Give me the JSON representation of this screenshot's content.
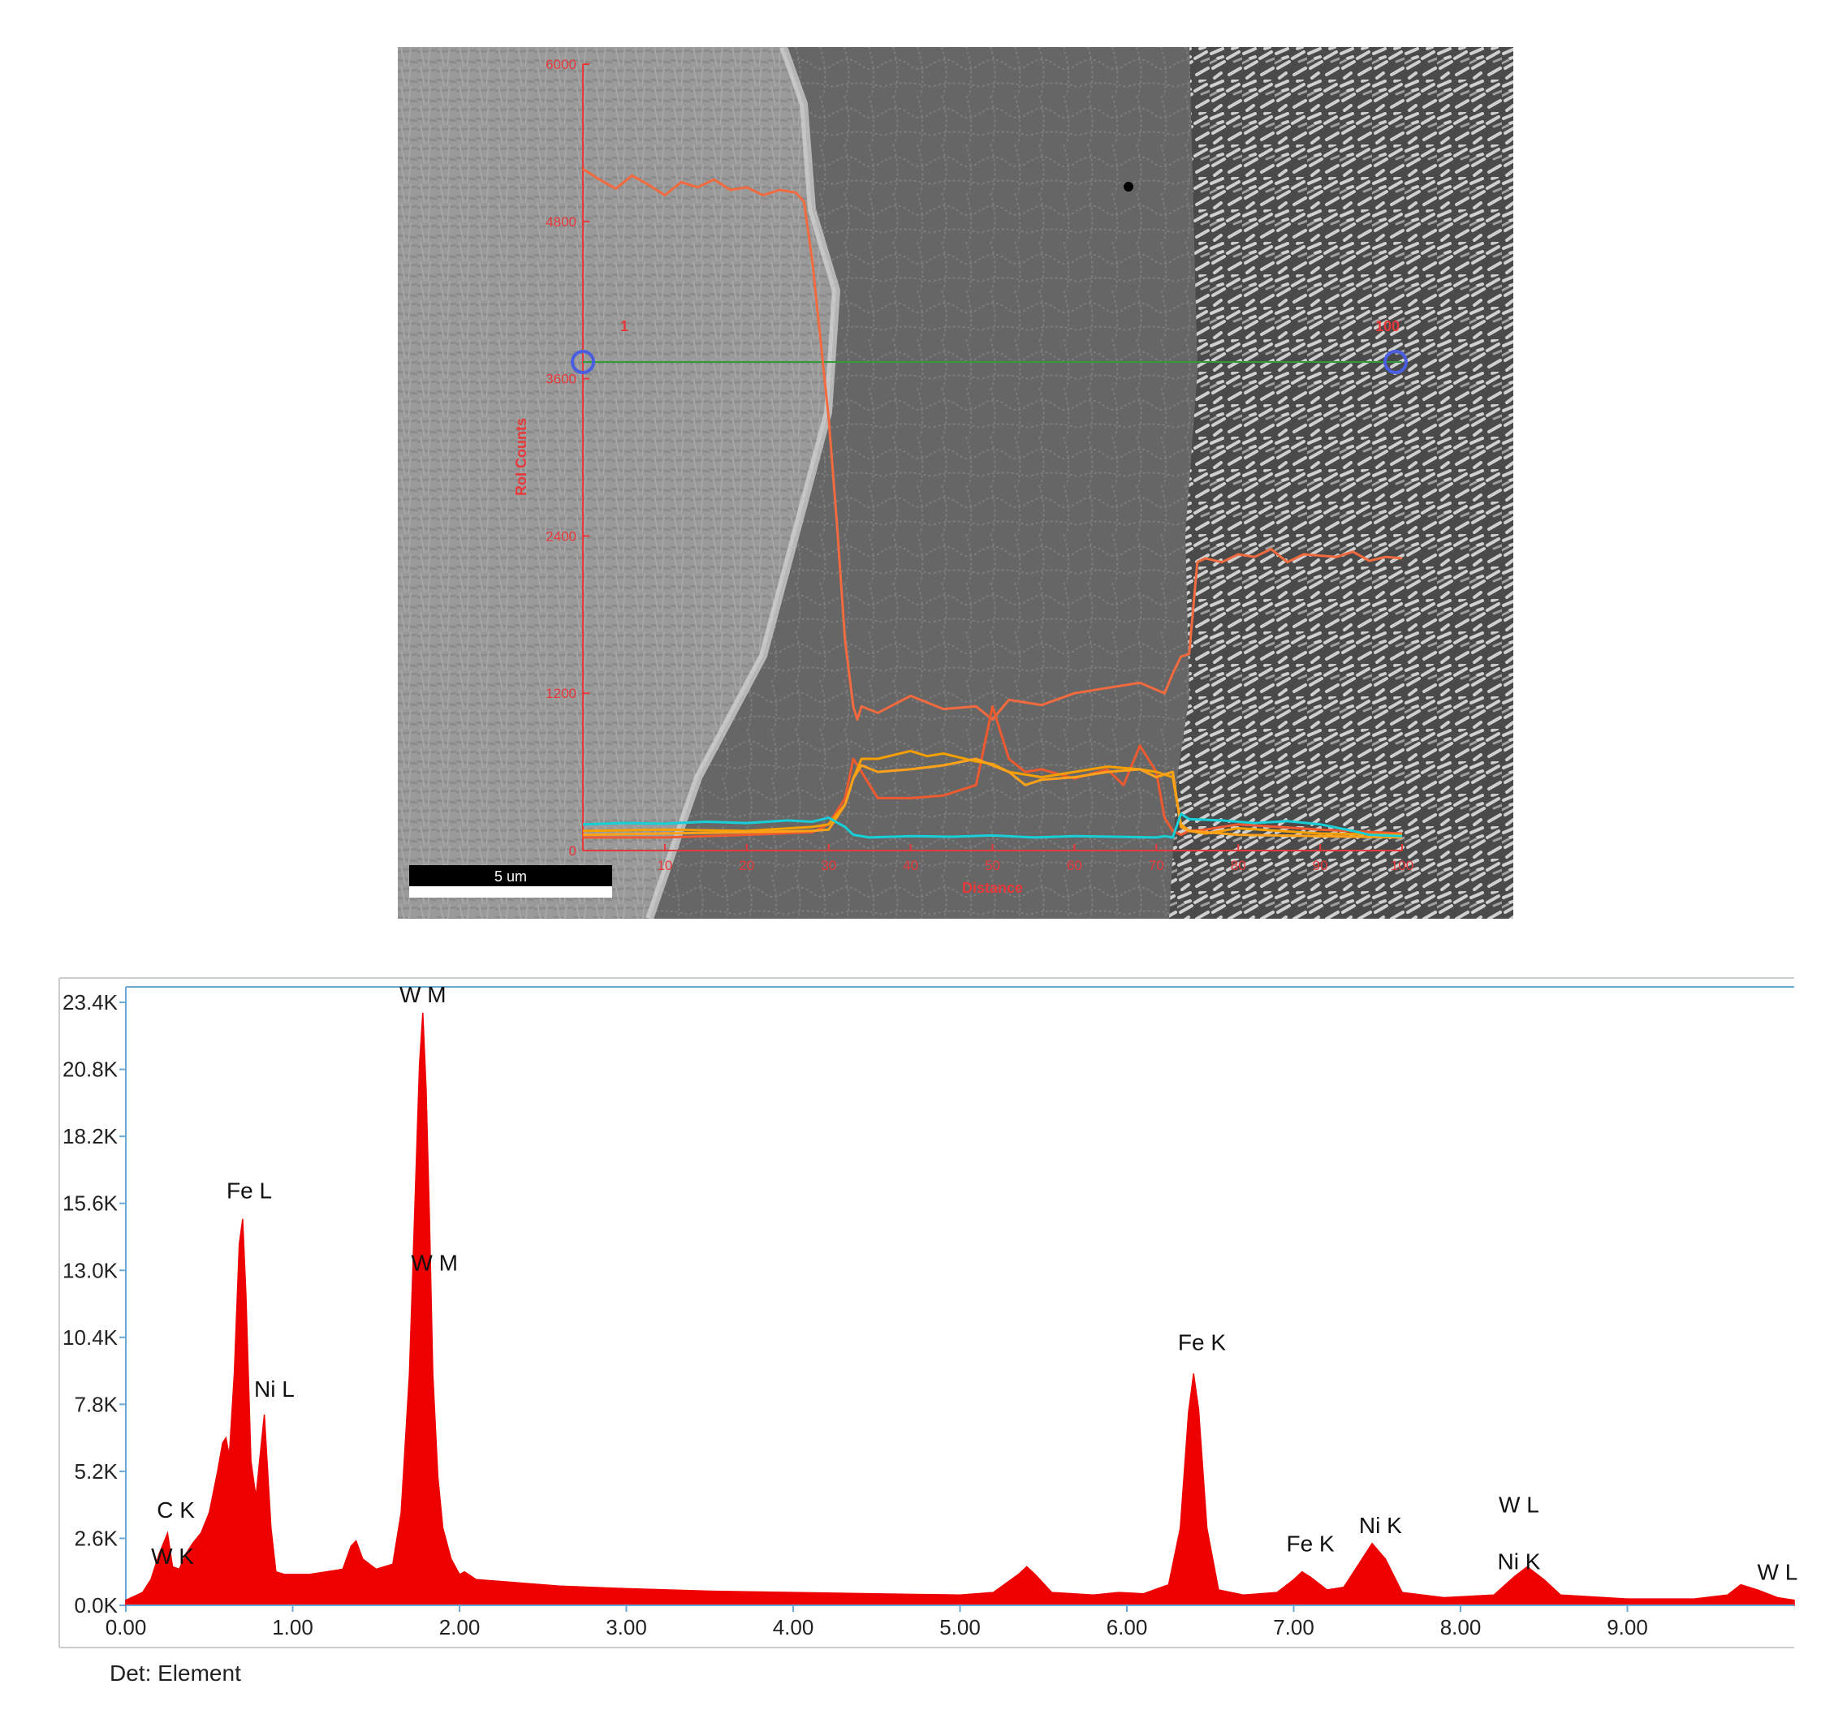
{
  "sem_linescan": {
    "y_axis_label": "RoI Counts",
    "y_ticks": [
      "0",
      "1200",
      "2400",
      "3600",
      "4800",
      "6000"
    ],
    "x_axis_label": "Distance",
    "x_ticks": [
      "10",
      "20",
      "30",
      "40",
      "50",
      "60",
      "70",
      "80",
      "90",
      "100"
    ],
    "start_marker": "1",
    "end_marker": "100",
    "scale_bar": "5 um",
    "colors": {
      "axis": "#e8383a",
      "scan_line": "#2e9c3a",
      "marker": "#4a5ee0"
    }
  },
  "chart_data": [
    {
      "type": "line",
      "title": "",
      "xlabel": "Distance",
      "ylabel": "RoI Counts",
      "xlim": [
        0,
        100
      ],
      "ylim": [
        0,
        6000
      ],
      "grid": false,
      "series": [
        {
          "color": "#f26a3d",
          "x": [
            0,
            2,
            4,
            6,
            8,
            10,
            12,
            14,
            16,
            18,
            20,
            22,
            24,
            26,
            27,
            28,
            29,
            30,
            31,
            32,
            33,
            33.5,
            34,
            36,
            40,
            44,
            48,
            50,
            52,
            56,
            60,
            64,
            68,
            71,
            72,
            73,
            74,
            75,
            76,
            78,
            80,
            82,
            84,
            86,
            88,
            90,
            92,
            94,
            96,
            98,
            100
          ],
          "y": [
            5200,
            5120,
            5050,
            5150,
            5080,
            5000,
            5100,
            5060,
            5120,
            5040,
            5060,
            5000,
            5040,
            5020,
            4950,
            4500,
            3900,
            3300,
            2500,
            1600,
            1100,
            1000,
            1100,
            1050,
            1180,
            1080,
            1100,
            1000,
            1150,
            1110,
            1200,
            1240,
            1280,
            1200,
            1350,
            1480,
            1500,
            2200,
            2230,
            2200,
            2260,
            2240,
            2300,
            2200,
            2260,
            2250,
            2240,
            2280,
            2210,
            2240,
            2230
          ]
        },
        {
          "color": "#ee5a30",
          "x": [
            0,
            10,
            20,
            28,
            30,
            32,
            33,
            34,
            36,
            40,
            44,
            48,
            50,
            52,
            54,
            56,
            60,
            64,
            66,
            68,
            70,
            71,
            72,
            73,
            74,
            76,
            80,
            90,
            100
          ],
          "y": [
            100,
            100,
            120,
            140,
            200,
            400,
            700,
            600,
            400,
            400,
            420,
            500,
            1100,
            700,
            600,
            620,
            550,
            620,
            500,
            800,
            600,
            250,
            150,
            120,
            150,
            160,
            200,
            160,
            130
          ]
        },
        {
          "color": "#f5a000",
          "x": [
            0,
            10,
            20,
            28,
            30,
            32,
            33,
            34,
            36,
            40,
            42,
            44,
            48,
            50,
            52,
            56,
            60,
            64,
            68,
            70,
            72,
            73,
            74,
            76,
            80,
            90,
            100
          ],
          "y": [
            150,
            160,
            150,
            180,
            200,
            350,
            550,
            700,
            700,
            760,
            720,
            740,
            680,
            660,
            600,
            560,
            600,
            640,
            620,
            600,
            560,
            200,
            150,
            130,
            170,
            130,
            120
          ]
        },
        {
          "color": "#ffa21a",
          "x": [
            0,
            10,
            20,
            28,
            30,
            32,
            33,
            34,
            36,
            40,
            44,
            48,
            52,
            54,
            56,
            60,
            64,
            68,
            70,
            72,
            73,
            74,
            80,
            90,
            100
          ],
          "y": [
            120,
            130,
            140,
            150,
            160,
            350,
            550,
            650,
            600,
            620,
            650,
            700,
            600,
            500,
            540,
            560,
            600,
            620,
            560,
            600,
            180,
            150,
            120,
            110,
            100
          ]
        },
        {
          "color": "#17cfd6",
          "x": [
            0,
            5,
            10,
            15,
            20,
            25,
            28,
            30,
            32,
            33,
            35,
            40,
            45,
            50,
            55,
            60,
            65,
            70,
            71,
            72,
            73,
            74,
            78,
            82,
            86,
            90,
            94,
            96,
            100
          ],
          "y": [
            200,
            210,
            205,
            220,
            210,
            230,
            220,
            250,
            180,
            120,
            100,
            110,
            105,
            115,
            100,
            110,
            105,
            100,
            110,
            100,
            280,
            240,
            230,
            210,
            225,
            200,
            150,
            120,
            110
          ]
        }
      ]
    },
    {
      "type": "area",
      "title": "",
      "xlabel": "",
      "ylabel": "",
      "xlim": [
        0,
        10
      ],
      "ylim": [
        0,
        24000
      ],
      "y_ticks": [
        0,
        2600,
        5200,
        7800,
        10400,
        13000,
        15600,
        18200,
        20800,
        23400
      ],
      "y_tick_labels": [
        "0.0K",
        "2.6K",
        "5.2K",
        "7.8K",
        "10.4K",
        "13.0K",
        "15.6K",
        "18.2K",
        "20.8K",
        "23.4K"
      ],
      "x_ticks": [
        0,
        1,
        2,
        3,
        4,
        5,
        6,
        7,
        8,
        9
      ],
      "x_tick_labels": [
        "0.00",
        "1.00",
        "2.00",
        "3.00",
        "4.00",
        "5.00",
        "6.00",
        "7.00",
        "8.00",
        "9.00"
      ],
      "color": "#ee0000",
      "x": [
        0,
        0.05,
        0.1,
        0.15,
        0.2,
        0.25,
        0.28,
        0.32,
        0.36,
        0.4,
        0.45,
        0.5,
        0.55,
        0.58,
        0.6,
        0.62,
        0.65,
        0.68,
        0.7,
        0.72,
        0.75,
        0.78,
        0.8,
        0.83,
        0.85,
        0.87,
        0.9,
        0.95,
        1.0,
        1.1,
        1.2,
        1.3,
        1.35,
        1.38,
        1.42,
        1.5,
        1.6,
        1.65,
        1.7,
        1.73,
        1.76,
        1.78,
        1.8,
        1.82,
        1.84,
        1.87,
        1.9,
        1.95,
        2.0,
        2.03,
        2.1,
        2.3,
        2.6,
        3.0,
        3.5,
        4.0,
        4.5,
        5.0,
        5.2,
        5.35,
        5.4,
        5.45,
        5.55,
        5.8,
        5.95,
        6.1,
        6.25,
        6.32,
        6.37,
        6.4,
        6.43,
        6.48,
        6.55,
        6.7,
        6.9,
        7.0,
        7.05,
        7.1,
        7.2,
        7.3,
        7.4,
        7.47,
        7.55,
        7.65,
        7.9,
        8.2,
        8.32,
        8.4,
        8.5,
        8.6,
        9.0,
        9.4,
        9.6,
        9.68,
        9.78,
        9.9,
        10.0
      ],
      "y": [
        200,
        350,
        500,
        1000,
        2000,
        2800,
        1500,
        1400,
        2000,
        2400,
        2800,
        3600,
        5200,
        6300,
        6500,
        5800,
        9000,
        14000,
        15000,
        12000,
        5600,
        4200,
        5500,
        7400,
        5200,
        3000,
        1300,
        1200,
        1200,
        1200,
        1300,
        1400,
        2300,
        2500,
        1800,
        1400,
        1600,
        3600,
        9000,
        15000,
        21000,
        23000,
        20000,
        15000,
        9000,
        5000,
        3000,
        1800,
        1200,
        1300,
        1000,
        900,
        750,
        650,
        550,
        500,
        450,
        400,
        500,
        1200,
        1500,
        1200,
        500,
        400,
        500,
        450,
        800,
        3000,
        7500,
        9000,
        7600,
        3000,
        600,
        400,
        500,
        1000,
        1300,
        1100,
        600,
        700,
        1700,
        2400,
        1800,
        500,
        300,
        400,
        1100,
        1500,
        1000,
        400,
        250,
        250,
        400,
        800,
        600,
        300,
        200
      ],
      "annotations": [
        "W  M",
        "Fe L",
        "W  M",
        "Ni L",
        "C  K",
        "W  K",
        "Fe K",
        "Fe K",
        "Ni K",
        "W  L",
        "Ni K",
        "W  L"
      ]
    }
  ],
  "eds": {
    "detector_label": "Det: Element",
    "axis_color": "#6aa8d8"
  }
}
